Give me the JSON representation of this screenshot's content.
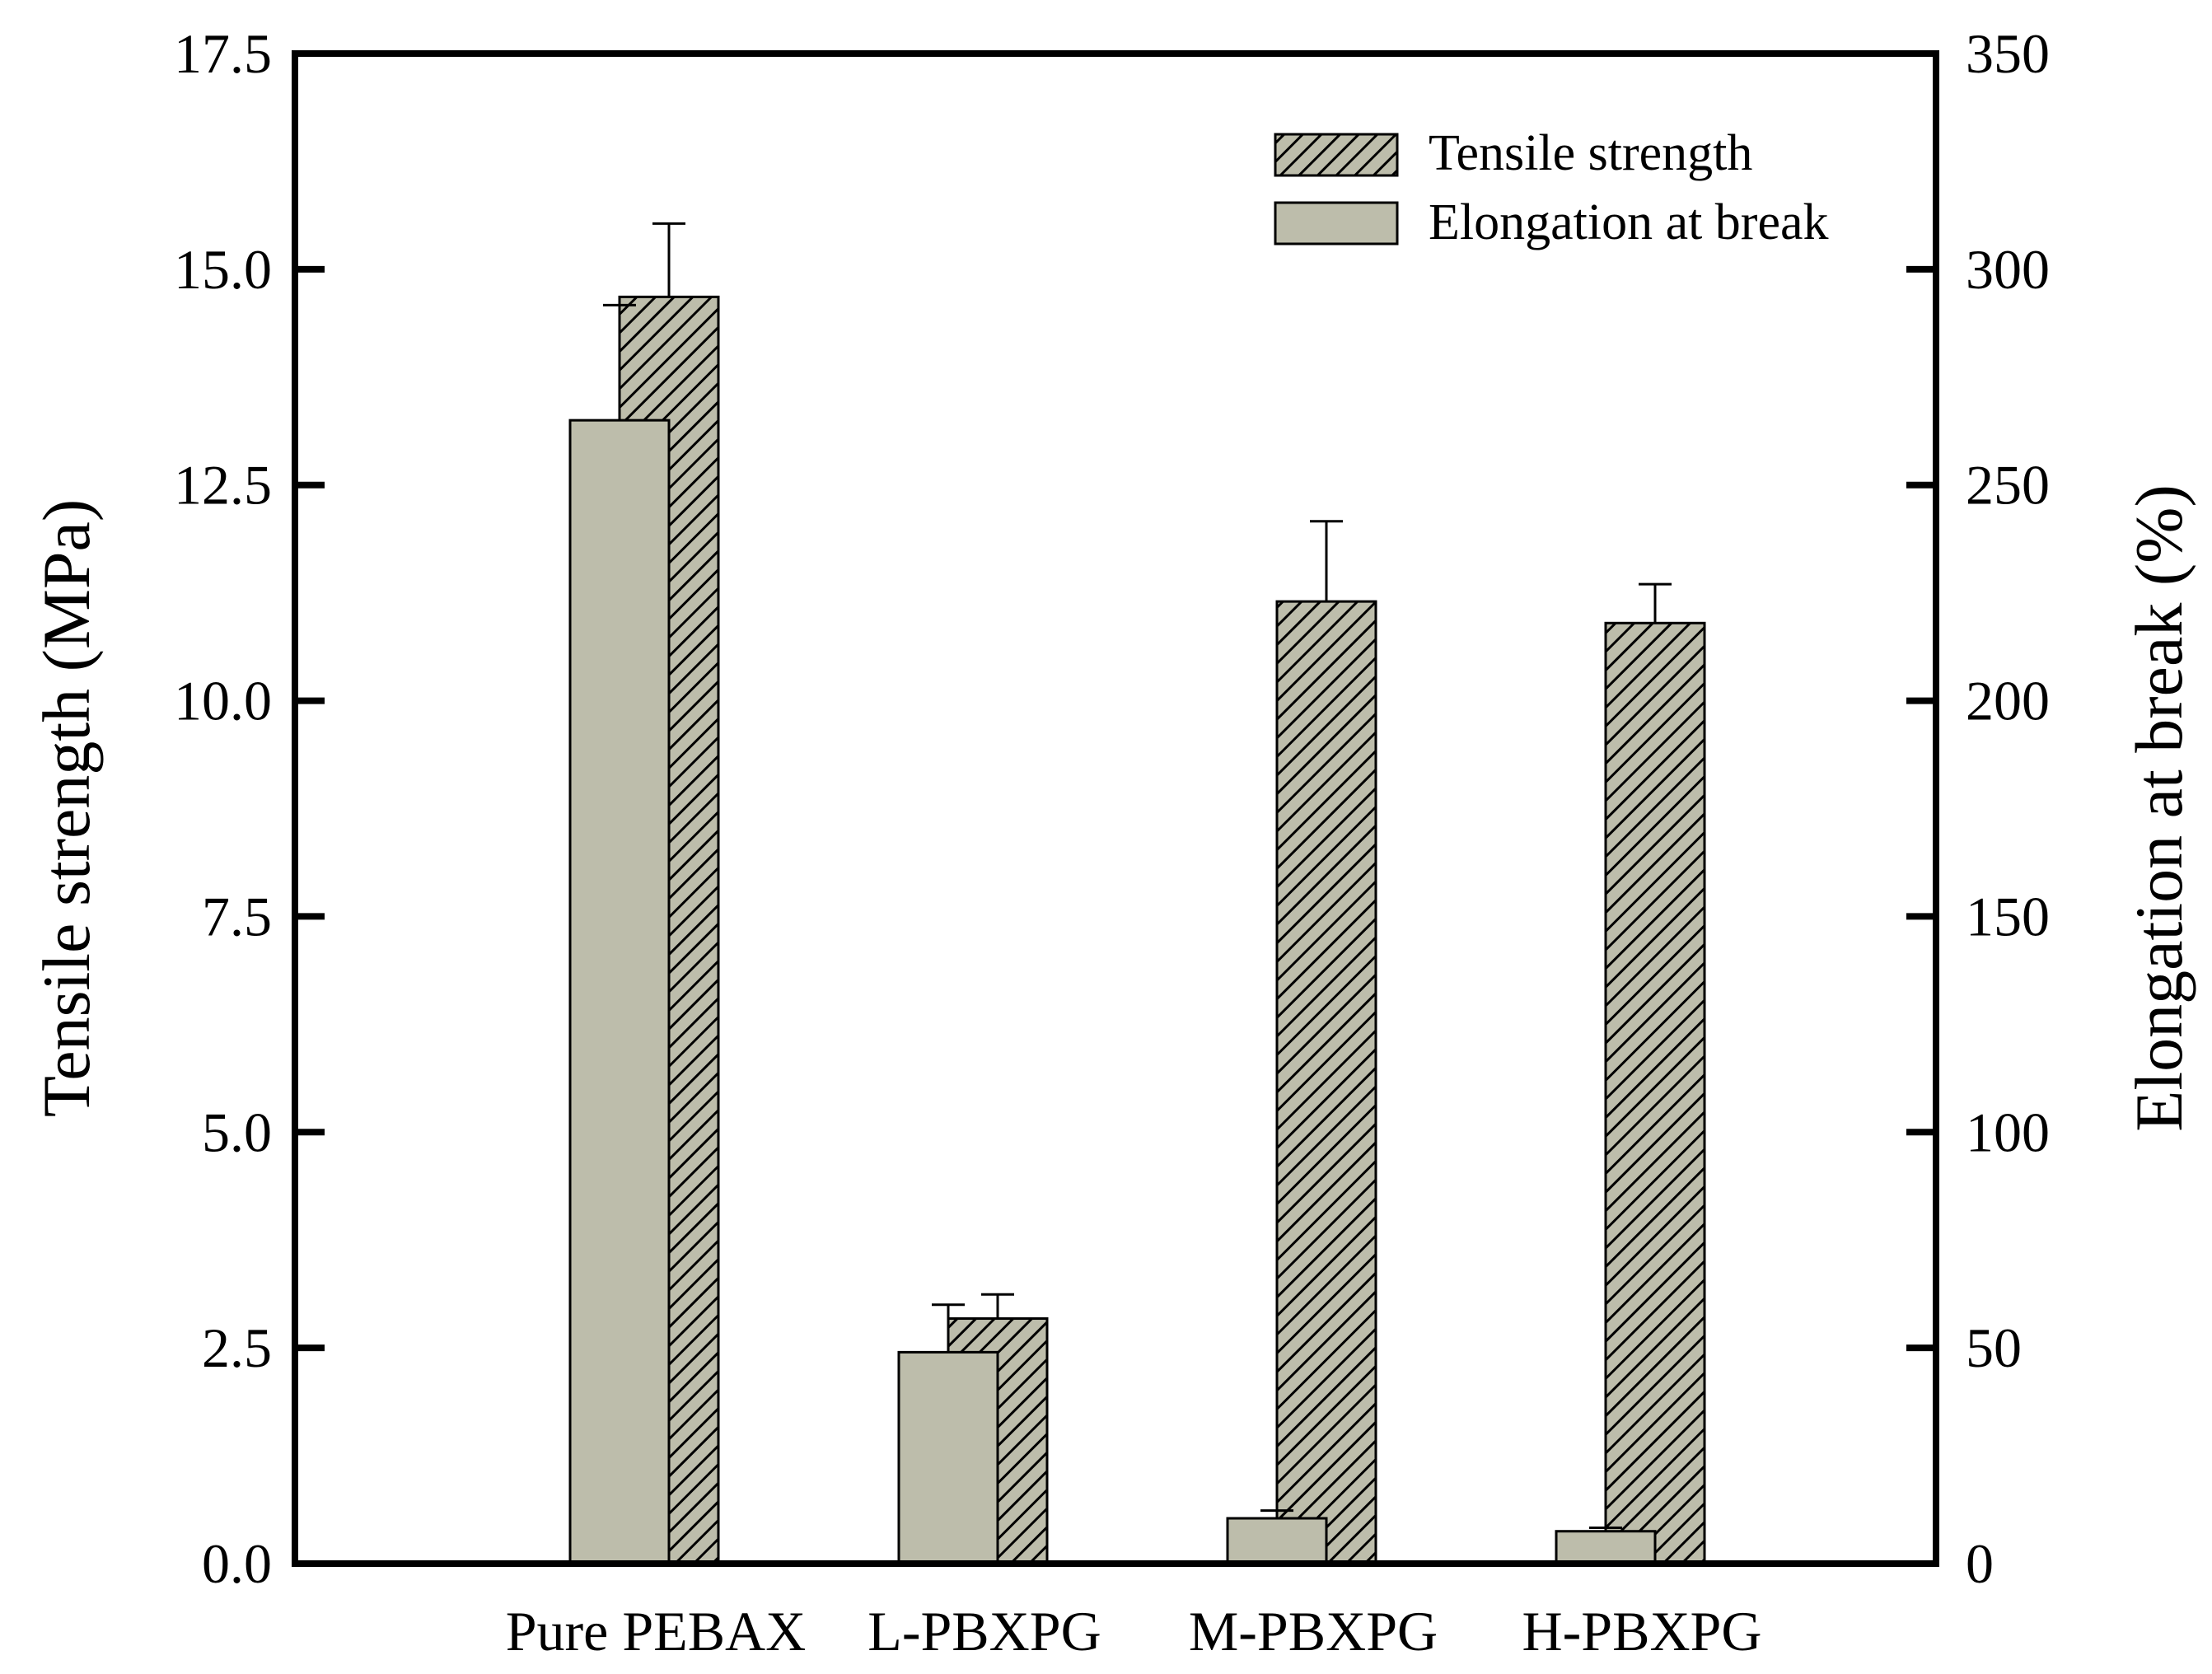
{
  "chart_data": {
    "type": "bar",
    "categories": [
      "Pure PEBAX",
      "L-PBXPG",
      "M-PBXPG",
      "H-PBXPG"
    ],
    "series": [
      {
        "name": "Elongation at break",
        "axis": "right",
        "pattern": "solid",
        "values": [
          265,
          49,
          10.5,
          7.5
        ],
        "errors": [
          26.7,
          11,
          1.8,
          0.8
        ]
      },
      {
        "name": "Tensile strength",
        "axis": "left",
        "pattern": "hatched",
        "values": [
          14.68,
          2.84,
          11.15,
          10.9
        ],
        "errors": [
          0.85,
          0.28,
          0.93,
          0.45
        ]
      }
    ],
    "ylabel": "Tensile strength (MPa)",
    "y2label": "Elongation at break (%)",
    "xlabel": "",
    "ylim": [
      0,
      17.5
    ],
    "y2lim": [
      0,
      350
    ],
    "yticks": [
      "0.0",
      "2.5",
      "5.0",
      "7.5",
      "10.0",
      "12.5",
      "15.0",
      "17.5"
    ],
    "y2ticks": [
      "0",
      "50",
      "100",
      "150",
      "200",
      "250",
      "300",
      "350"
    ],
    "legend": {
      "position": "top-right",
      "entries": [
        "Tensile strength",
        "Elongation at break"
      ]
    },
    "grid": false
  },
  "colors": {
    "bar_fill": "#bdbdab",
    "hatch_line": "#000000",
    "axis": "#000000"
  }
}
